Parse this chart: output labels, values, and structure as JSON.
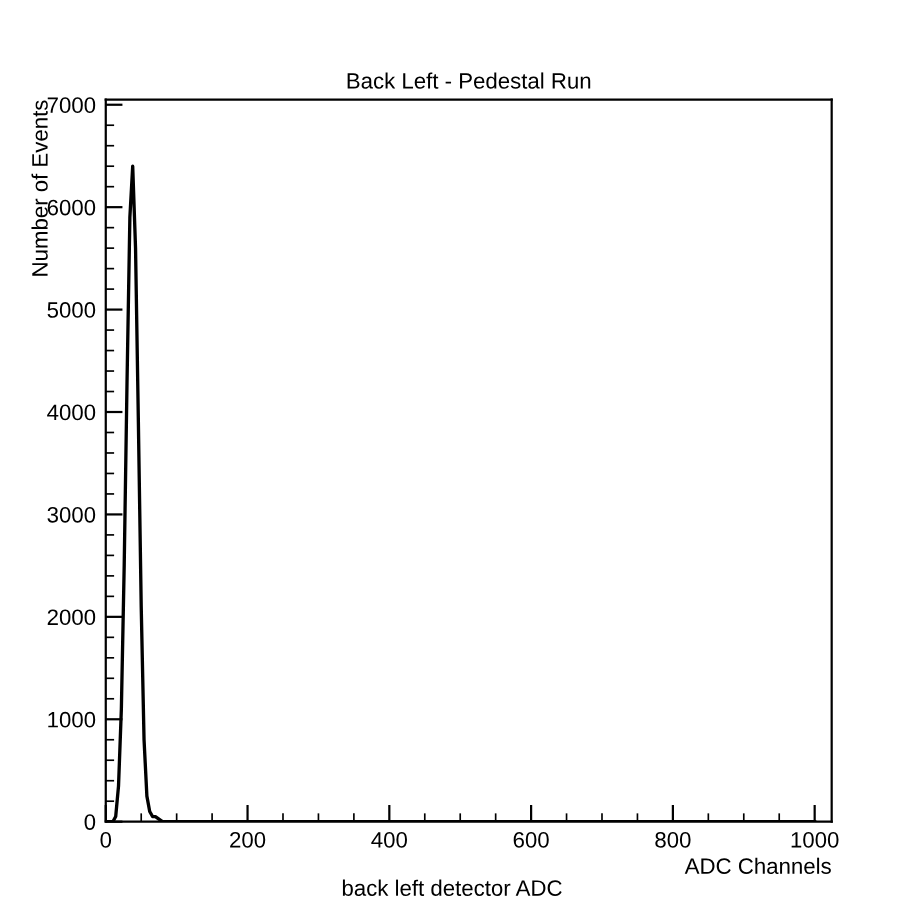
{
  "chart_data": {
    "type": "line",
    "title": "Back Left - Pedestal Run",
    "xlabel": "ADC Channels",
    "ylabel": "Number of Events",
    "annotations": [
      "back left detector ADC"
    ],
    "x": [
      0,
      10,
      14,
      18,
      22,
      26,
      30,
      34,
      38,
      42,
      46,
      50,
      54,
      58,
      62,
      66,
      70,
      80,
      200,
      400,
      600,
      800,
      1000
    ],
    "values": [
      0,
      0,
      50,
      350,
      1100,
      2500,
      4300,
      5900,
      6400,
      5600,
      3900,
      2100,
      800,
      250,
      100,
      50,
      50,
      0,
      0,
      0,
      0,
      0,
      0
    ],
    "color": "#000000",
    "xlim": [
      0,
      1024
    ],
    "xticks": [
      0,
      200,
      400,
      600,
      800,
      1000
    ],
    "ylim": [
      0,
      7050
    ],
    "yticks": [
      0,
      1000,
      2000,
      3000,
      4000,
      5000,
      6000,
      7000
    ],
    "grid": false,
    "legend": false,
    "marker": "none"
  }
}
